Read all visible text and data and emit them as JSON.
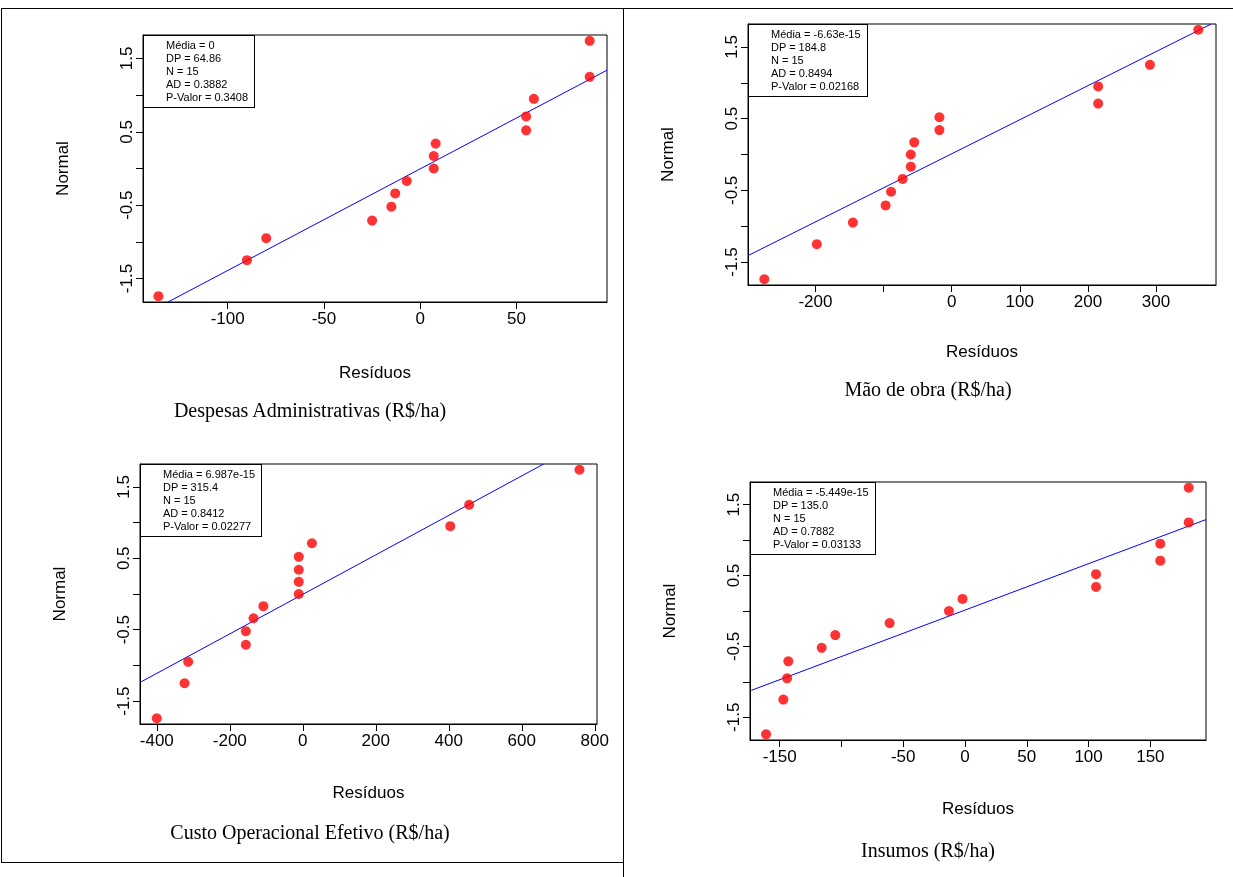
{
  "chart_data": [
    {
      "type": "scatter",
      "title": "Despesas Administrativas (R$/ha)",
      "xlabel": "Resíduos",
      "ylabel": "Normal",
      "annotations": [
        "Média = 0",
        "DP = 64.86",
        "N = 15",
        "AD = 0.3882",
        "P-Valor = 0.3408"
      ],
      "xlim": [
        -144,
        97
      ],
      "ylim": [
        -1.82,
        1.82
      ],
      "xticks": [
        -100,
        -50,
        0,
        50
      ],
      "yticks": [
        -1.5,
        {
          "value": -1,
          "label": null
        },
        -0.5,
        {
          "value": 0,
          "label": null
        },
        0.5,
        {
          "value": 1,
          "label": null
        },
        1.5
      ],
      "series": [
        {
          "marker": "circle",
          "color": "#ff0000",
          "x": [
            -136,
            -90,
            -80,
            -25,
            -15,
            -13,
            -7,
            7,
            7,
            8,
            55,
            55,
            59,
            88,
            88
          ],
          "values": [
            -1.74,
            -1.25,
            -0.95,
            -0.71,
            -0.52,
            -0.34,
            -0.17,
            0,
            0.17,
            0.34,
            0.52,
            0.71,
            0.95,
            1.25,
            1.74
          ]
        },
        {
          "type": "line",
          "marker": "none",
          "color": "#0000ff",
          "x": [
            -131,
            97
          ],
          "values": [
            -1.82,
            1.34
          ]
        }
      ]
    },
    {
      "type": "scatter",
      "title": "Mão de obra (R$/ha)",
      "xlabel": "Resíduos",
      "ylabel": "Normal",
      "annotations": [
        "Média = -6.63e-15",
        "DP = 184.8",
        "N = 15",
        "AD = 0.8494",
        "P-Valor = 0.02168"
      ],
      "xlim": [
        -299,
        388
      ],
      "ylim": [
        -1.82,
        1.82
      ],
      "xticks": [
        -200,
        {
          "value": -100,
          "label": null
        },
        0,
        100,
        200,
        300
      ],
      "yticks": [
        -1.5,
        {
          "value": -1,
          "label": null
        },
        -0.5,
        {
          "value": 0,
          "label": null
        },
        0.5,
        {
          "value": 1,
          "label": null
        },
        1.5
      ],
      "series": [
        {
          "marker": "circle",
          "color": "#ff0000",
          "x": [
            -275,
            -198,
            -145,
            -97,
            -89,
            -72,
            -60,
            -60,
            -55,
            -18,
            -18,
            215,
            215,
            291,
            362
          ],
          "values": [
            -1.74,
            -1.25,
            -0.95,
            -0.71,
            -0.52,
            -0.34,
            -0.17,
            0,
            0.17,
            0.34,
            0.52,
            0.71,
            0.95,
            1.25,
            1.74
          ]
        },
        {
          "type": "line",
          "marker": "none",
          "color": "#0000ff",
          "x": [
            -299,
            381
          ],
          "values": [
            -1.41,
            1.82
          ]
        }
      ]
    },
    {
      "type": "scatter",
      "title": "Custo Operacional Efetivo (R$/ha)",
      "xlabel": "Resíduos",
      "ylabel": "Normal",
      "annotations": [
        "Média = 6.987e-15",
        "DP = 315.4",
        "N = 15",
        "AD = 0.8412",
        "P-Valor = 0.02277"
      ],
      "xlim": [
        -446,
        806
      ],
      "ylim": [
        -1.82,
        1.82
      ],
      "xticks": [
        -400,
        -200,
        0,
        200,
        400,
        600,
        800
      ],
      "yticks": [
        -1.5,
        {
          "value": -1,
          "label": null
        },
        -0.5,
        {
          "value": 0,
          "label": null
        },
        0.5,
        {
          "value": 1,
          "label": null
        },
        1.5
      ],
      "series": [
        {
          "marker": "circle",
          "color": "#ff0000",
          "x": [
            -400,
            -324,
            -314,
            -156,
            -156,
            -135,
            -108,
            -11,
            -11,
            -11,
            -11,
            25,
            404,
            456,
            758
          ],
          "values": [
            -1.74,
            -1.25,
            -0.95,
            -0.71,
            -0.52,
            -0.34,
            -0.17,
            0,
            0.17,
            0.34,
            0.52,
            0.71,
            0.95,
            1.25,
            1.74
          ]
        },
        {
          "type": "line",
          "marker": "none",
          "color": "#0000ff",
          "x": [
            -443,
            660
          ],
          "values": [
            -1.23,
            1.82
          ]
        }
      ]
    },
    {
      "type": "scatter",
      "title": "Insumos (R$/ha)",
      "xlabel": "Resíduos",
      "ylabel": "Normal",
      "annotations": [
        "Média = -5.449e-15",
        "DP = 135.0",
        "N = 15",
        "AD = 0.7882",
        "P-Valor = 0.03133"
      ],
      "xlim": [
        -174,
        195
      ],
      "ylim": [
        -1.82,
        1.82
      ],
      "xticks": [
        -150,
        {
          "value": -100,
          "label": null
        },
        -50,
        0,
        50,
        100,
        150
      ],
      "yticks": [
        -1.5,
        {
          "value": -1,
          "label": null
        },
        -0.5,
        {
          "value": 0,
          "label": null
        },
        0.5,
        {
          "value": 1,
          "label": null
        },
        1.5
      ],
      "series": [
        {
          "marker": "circle",
          "color": "#ff0000",
          "x": [
            -161,
            -147,
            -144,
            -143,
            -116,
            -105,
            -61,
            -13,
            -2,
            106,
            106,
            158,
            158,
            181,
            181
          ],
          "values": [
            -1.74,
            -1.25,
            -0.95,
            -0.71,
            -0.52,
            -0.34,
            -0.17,
            0,
            0.17,
            0.34,
            0.52,
            0.71,
            0.95,
            1.25,
            1.74
          ]
        },
        {
          "type": "line",
          "marker": "none",
          "color": "#0000ff",
          "x": [
            -173,
            195
          ],
          "values": [
            -1.12,
            1.29
          ]
        }
      ]
    }
  ]
}
